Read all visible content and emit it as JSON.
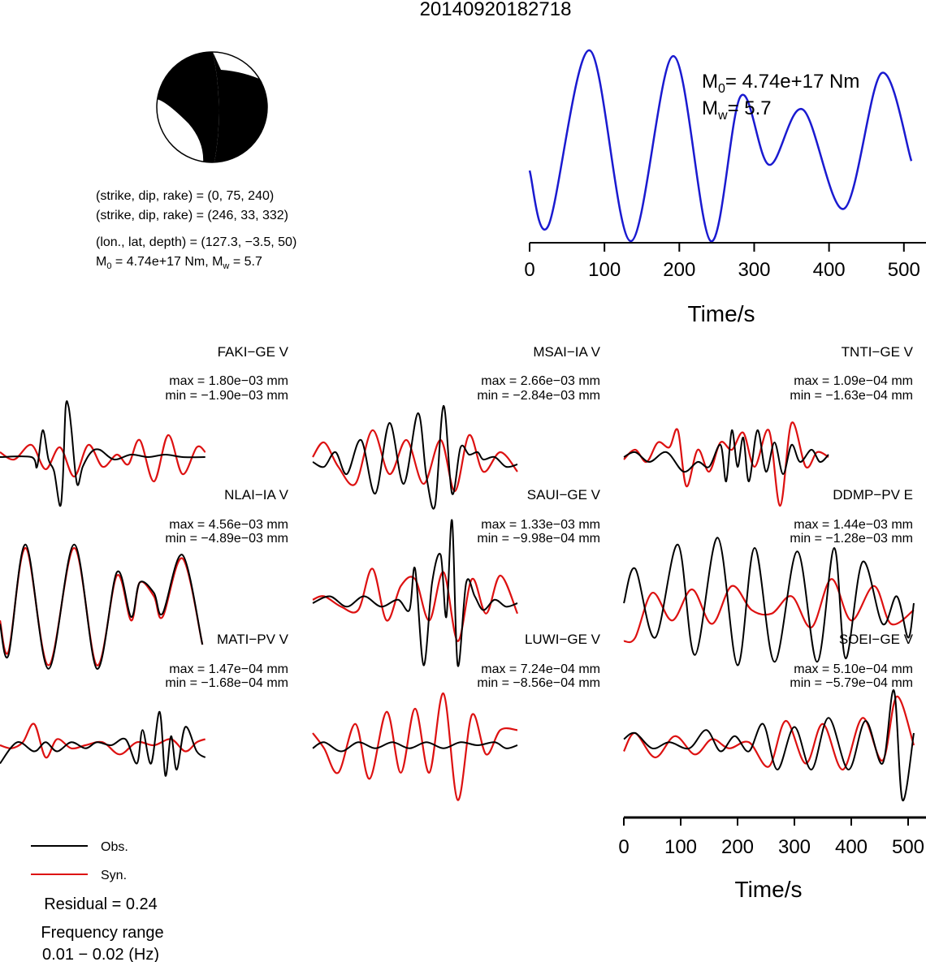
{
  "title": "20140920182718",
  "mechanism": {
    "line1": "(strike, dip, rake) = (0, 75, 240)",
    "line2": "(strike, dip, rake) = (246, 33, 332)",
    "line3": "(lon., lat, depth) = (127.3, −3.5, 50)",
    "line4_m0": "4.74e+17 Nm",
    "line4_mw": "5.7"
  },
  "stf": {
    "m0_text": "= 4.74e+17 Nm",
    "mw_text": "= 5.7",
    "xlabel": "Time/s",
    "ticks": [
      "0",
      "100",
      "200",
      "300",
      "400",
      "500"
    ]
  },
  "bottom_axis": {
    "xlabel": "Time/s",
    "ticks": [
      "0",
      "100",
      "200",
      "300",
      "400",
      "500"
    ]
  },
  "legend": {
    "obs": "Obs.",
    "syn": "Syn.",
    "residual": "Residual = 0.24",
    "freq_label": "Frequency range",
    "freq_value": "0.01 − 0.02 (Hz)"
  },
  "colors": {
    "obs": "#000000",
    "syn": "#dd1111",
    "stf": "#1a1ad0",
    "beachball_fill": "#000000"
  },
  "chart_data": [
    {
      "type": "line",
      "name": "source time function",
      "xlabel": "Time/s",
      "xlim": [
        0,
        510
      ],
      "series": [
        {
          "x": [
            0,
            25,
            80,
            135,
            192,
            242,
            282,
            320,
            365,
            420,
            470,
            510
          ],
          "values": [
            0.37,
            0.08,
            1.0,
            0.0,
            0.97,
            0.0,
            0.76,
            0.4,
            0.69,
            0.17,
            0.88,
            0.42
          ]
        }
      ]
    },
    {
      "type": "line",
      "name": "waveform fits",
      "xlim": [
        0,
        510
      ],
      "stations": [
        {
          "name": "FAKI−GE V",
          "max": "max = 1.80e−03 mm",
          "min": "min = −1.90e−03 mm",
          "obs": {
            "x": [
              0,
              55,
              65,
              75,
              85,
              95,
              105,
              110,
              115,
              120,
              125,
              135,
              145,
              160,
              175,
              200,
              230,
              260,
              290,
              320,
              360
            ],
            "y": [
              0,
              0,
              -0.2,
              0.55,
              -0.05,
              -0.3,
              -1.0,
              -0.5,
              1.0,
              1.05,
              0.6,
              -0.55,
              -0.2,
              0.1,
              0.15,
              -0.05,
              0.05,
              0.0,
              0.05,
              0.0,
              0.0
            ]
          },
          "syn": {
            "x": [
              0,
              25,
              55,
              80,
              105,
              130,
              155,
              180,
              205,
              225,
              245,
              270,
              295,
              320,
              345,
              360
            ],
            "y": [
              0.1,
              -0.05,
              0.25,
              -0.25,
              0.2,
              -0.4,
              0.25,
              -0.2,
              0.05,
              -0.15,
              0.35,
              -0.5,
              0.45,
              -0.35,
              0.2,
              0.1
            ]
          }
        },
        {
          "name": "MSAI−IA V",
          "max": "max = 2.66e−03 mm",
          "min": "min = −2.84e−03 mm",
          "obs": {
            "x": [
              0,
              20,
              40,
              60,
              85,
              110,
              135,
              160,
              185,
              200,
              215,
              230,
              245,
              260,
              275,
              290,
              300,
              320,
              340,
              360
            ],
            "y": [
              -0.1,
              -0.2,
              0.1,
              -0.35,
              0.35,
              -0.75,
              0.7,
              -0.55,
              0.9,
              -0.4,
              -1.0,
              1.05,
              -0.75,
              0.2,
              0.05,
              0.1,
              -0.05,
              0.0,
              -0.2,
              -0.15
            ]
          },
          "syn": {
            "x": [
              0,
              20,
              45,
              75,
              105,
              135,
              165,
              195,
              225,
              250,
              275,
              300,
              330,
              360
            ],
            "y": [
              0.0,
              0.3,
              -0.2,
              -0.55,
              0.55,
              -0.35,
              0.35,
              -0.55,
              0.35,
              -0.7,
              0.45,
              -0.3,
              0.1,
              -0.3
            ]
          }
        },
        {
          "name": "TNTI−GE V",
          "max": "max = 1.09e−04 mm",
          "min": "min = −1.63e−04 mm",
          "obs": {
            "x": [
              0,
              20,
              45,
              75,
              105,
              130,
              150,
              170,
              180,
              190,
              200,
              210,
              220,
              235,
              250,
              265,
              280,
              295,
              310,
              330,
              345,
              360
            ],
            "y": [
              0.0,
              0.1,
              -0.1,
              0.1,
              -0.3,
              -0.1,
              -0.2,
              0.25,
              -0.5,
              0.55,
              -0.2,
              0.4,
              -0.5,
              0.55,
              -0.3,
              0.3,
              -0.35,
              0.25,
              -0.1,
              0.15,
              -0.1,
              0.05
            ]
          },
          "syn": {
            "x": [
              0,
              20,
              40,
              60,
              80,
              95,
              110,
              130,
              150,
              170,
              190,
              210,
              230,
              255,
              275,
              295,
              320,
              340,
              360
            ],
            "y": [
              -0.05,
              0.15,
              -0.1,
              0.3,
              0.2,
              0.55,
              -0.6,
              0.15,
              -0.3,
              0.3,
              0.15,
              0.5,
              -0.2,
              0.55,
              -1.0,
              0.7,
              -0.2,
              0.1,
              0.0
            ]
          }
        },
        {
          "name": "NLAI−IA V",
          "max": "max = 4.56e−03 mm",
          "min": "min = −4.89e−03 mm",
          "obs": {
            "x": [
              0,
              15,
              45,
              85,
              130,
              170,
              205,
              230,
              245,
              270,
              285,
              320,
              355
            ],
            "y": [
              -0.3,
              -0.75,
              0.85,
              -0.95,
              0.85,
              -0.95,
              0.45,
              -0.2,
              0.3,
              0.15,
              -0.15,
              0.7,
              -0.6
            ]
          },
          "syn": {
            "x": [
              0,
              15,
              45,
              85,
              130,
              170,
              205,
              230,
              245,
              270,
              285,
              320,
              355
            ],
            "y": [
              -0.25,
              -0.7,
              0.8,
              -0.9,
              0.8,
              -0.9,
              0.4,
              -0.25,
              0.3,
              0.1,
              -0.2,
              0.65,
              -0.6
            ]
          }
        },
        {
          "name": "SAUI−GE V",
          "max": "max = 1.33e−03 mm",
          "min": "min = −9.98e−04 mm",
          "obs": {
            "x": [
              0,
              30,
              60,
              90,
              120,
              150,
              170,
              180,
              195,
              210,
              225,
              235,
              245,
              255,
              270,
              285,
              300,
              320,
              340,
              360
            ],
            "y": [
              0.0,
              0.1,
              -0.05,
              0.1,
              -0.05,
              0.05,
              -0.1,
              0.5,
              -0.9,
              0.3,
              0.7,
              -0.2,
              1.2,
              -0.9,
              0.3,
              0.1,
              -0.1,
              0.05,
              -0.05,
              0.0
            ]
          },
          "syn": {
            "x": [
              0,
              20,
              50,
              80,
              105,
              130,
              155,
              180,
              205,
              230,
              255,
              280,
              305,
              330,
              360
            ],
            "y": [
              0.05,
              0.1,
              -0.05,
              -0.1,
              0.5,
              -0.25,
              0.25,
              0.35,
              -0.25,
              0.45,
              -0.55,
              0.35,
              -0.15,
              0.4,
              -0.15
            ]
          }
        },
        {
          "name": "DDMP−PV E",
          "max": "max = 1.44e−03 mm",
          "min": "min = −1.28e−03 mm",
          "obs": {
            "x": [
              0,
              20,
              55,
              95,
              125,
              165,
              200,
              230,
              265,
              305,
              340,
              370,
              390,
              420,
              455,
              480,
              500,
              510
            ],
            "y": [
              0.0,
              0.5,
              -0.5,
              0.85,
              -0.75,
              0.95,
              -0.9,
              0.8,
              -0.85,
              0.75,
              -0.85,
              0.8,
              -0.8,
              0.6,
              -0.3,
              0.1,
              -0.5,
              0.0
            ]
          },
          "syn": {
            "x": [
              0,
              20,
              50,
              85,
              120,
              155,
              190,
              225,
              260,
              295,
              330,
              365,
              400,
              440,
              470,
              510
            ],
            "y": [
              -0.55,
              -0.5,
              0.15,
              -0.25,
              0.2,
              -0.3,
              0.25,
              -0.1,
              -0.15,
              0.1,
              -0.35,
              0.35,
              -0.25,
              0.25,
              -0.3,
              -0.1
            ]
          }
        },
        {
          "name": "MATI−PV V",
          "max": "max = 1.47e−04 mm",
          "min": "min = −1.68e−04 mm",
          "obs": {
            "x": [
              0,
              30,
              60,
              80,
              100,
              125,
              150,
              170,
              195,
              220,
              240,
              250,
              265,
              280,
              290,
              300,
              310,
              325,
              345,
              360
            ],
            "y": [
              -0.3,
              0.05,
              -0.1,
              0.05,
              -0.1,
              0.05,
              -0.05,
              0.05,
              0.0,
              0.1,
              -0.3,
              0.25,
              -0.3,
              0.55,
              -0.5,
              0.15,
              -0.4,
              0.3,
              -0.1,
              -0.2
            ]
          },
          "syn": {
            "x": [
              0,
              20,
              40,
              60,
              80,
              100,
              125,
              150,
              180,
              210,
              240,
              270,
              300,
              325,
              345,
              360
            ],
            "y": [
              0.0,
              -0.05,
              0.05,
              0.35,
              -0.2,
              0.1,
              -0.05,
              0.0,
              0.05,
              -0.15,
              0.05,
              0.0,
              0.1,
              -0.1,
              0.05,
              0.1
            ]
          }
        },
        {
          "name": "LUWI−GE V",
          "max": "max = 7.24e−04 mm",
          "min": "min = −8.56e−04 mm",
          "obs": {
            "x": [
              0,
              20,
              50,
              80,
              110,
              140,
              170,
              200,
              230,
              260,
              290,
              320,
              340,
              360
            ],
            "y": [
              -0.05,
              0.05,
              -0.1,
              0.05,
              -0.05,
              0.05,
              -0.05,
              0.05,
              -0.05,
              0.05,
              0.0,
              0.05,
              -0.05,
              0.0
            ]
          },
          "syn": {
            "x": [
              0,
              20,
              45,
              75,
              100,
              130,
              155,
              180,
              205,
              230,
              255,
              280,
              305,
              330,
              360
            ],
            "y": [
              0.2,
              -0.05,
              -0.45,
              0.35,
              -0.55,
              0.55,
              -0.45,
              0.6,
              -0.45,
              0.85,
              -0.9,
              0.5,
              -0.15,
              0.25,
              0.25
            ]
          }
        },
        {
          "name": "SOEI−GE V",
          "max": "max = 5.10e−04 mm",
          "min": "min = −5.79e−04 mm",
          "obs": {
            "x": [
              0,
              20,
              50,
              80,
              115,
              145,
              170,
              195,
              220,
              245,
              270,
              300,
              330,
              360,
              395,
              425,
              455,
              475,
              490,
              510
            ],
            "y": [
              0.1,
              0.2,
              -0.05,
              0.05,
              -0.05,
              0.25,
              -0.1,
              0.15,
              -0.1,
              0.35,
              -0.4,
              0.3,
              -0.4,
              0.45,
              -0.4,
              0.4,
              -0.3,
              0.9,
              -0.9,
              0.2
            ]
          },
          "syn": {
            "x": [
              0,
              20,
              55,
              90,
              125,
              155,
              185,
              220,
              255,
              285,
              320,
              350,
              385,
              420,
              455,
              480,
              510
            ],
            "y": [
              -0.1,
              0.2,
              -0.2,
              0.15,
              -0.15,
              0.1,
              -0.05,
              0.05,
              -0.35,
              0.4,
              -0.3,
              0.35,
              -0.4,
              0.45,
              -0.25,
              0.8,
              0.0
            ]
          }
        }
      ]
    }
  ]
}
